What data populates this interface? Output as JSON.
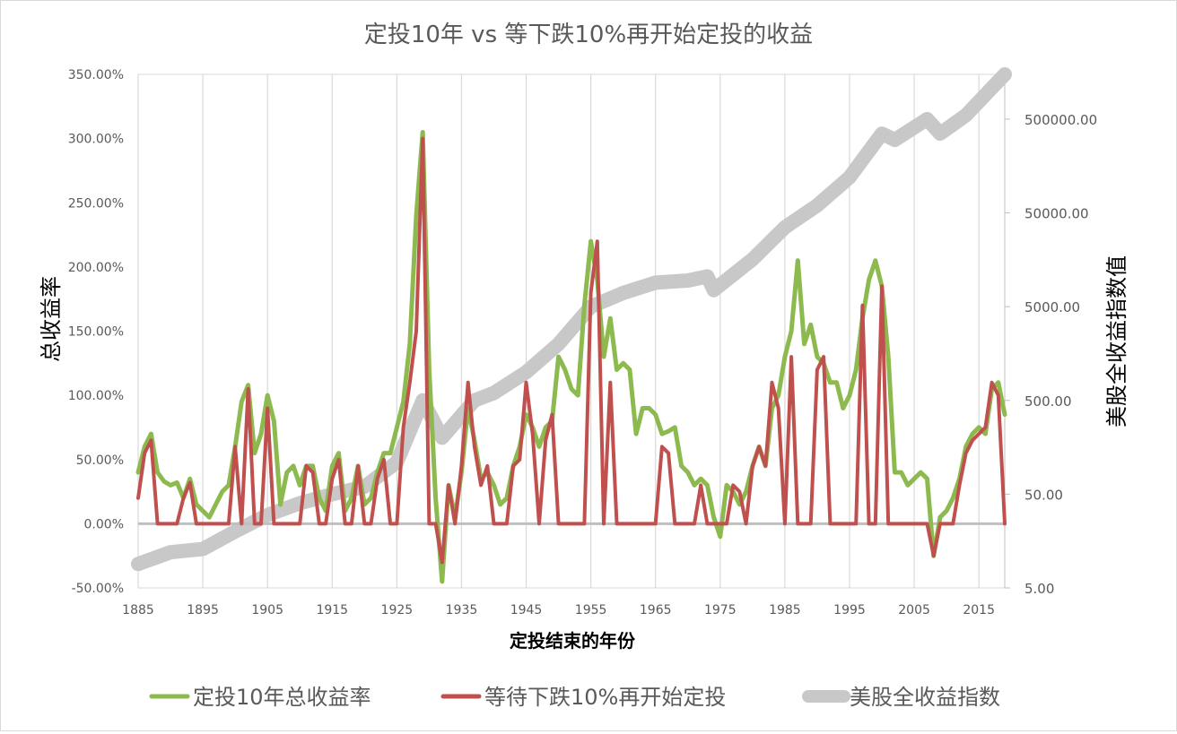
{
  "chart_data": {
    "type": "line",
    "title": "定投10年 vs 等下跌10%再开始定投的收益",
    "xlabel": "定投结束的年份",
    "ylabel_left": "总收益率",
    "ylabel_right": "美股全收益指数值",
    "x_ticks": [
      "1885",
      "1895",
      "1905",
      "1915",
      "1925",
      "1935",
      "1945",
      "1955",
      "1965",
      "1975",
      "1985",
      "1995",
      "2005",
      "2015"
    ],
    "y_left_ticks": [
      "350.00%",
      "300.00%",
      "250.00%",
      "200.00%",
      "150.00%",
      "100.00%",
      "50.00%",
      "0.00%",
      "-50.00%"
    ],
    "y_right_ticks": [
      "500000.00",
      "50000.00",
      "5000.00",
      "500.00",
      "50.00",
      "5.00"
    ],
    "x_range": [
      1885,
      2019
    ],
    "y_left_range": [
      -0.5,
      3.5
    ],
    "y_right_range": [
      5,
      1500000
    ],
    "y_right_scale": "log",
    "grid": "vertical",
    "legend_position": "bottom",
    "colors": {
      "green": "#8cba4e",
      "red": "#c0504d",
      "gray": "#c8c8c8"
    },
    "series": [
      {
        "name": "定投10年总收益率",
        "axis": "left",
        "color": "#8cba4e",
        "points": [
          [
            1885,
            0.4
          ],
          [
            1886,
            0.6
          ],
          [
            1887,
            0.7
          ],
          [
            1888,
            0.4
          ],
          [
            1889,
            0.33
          ],
          [
            1890,
            0.3
          ],
          [
            1891,
            0.32
          ],
          [
            1892,
            0.2
          ],
          [
            1893,
            0.35
          ],
          [
            1894,
            0.15
          ],
          [
            1895,
            0.1
          ],
          [
            1896,
            0.05
          ],
          [
            1897,
            0.15
          ],
          [
            1898,
            0.25
          ],
          [
            1899,
            0.3
          ],
          [
            1900,
            0.6
          ],
          [
            1901,
            0.95
          ],
          [
            1902,
            1.08
          ],
          [
            1903,
            0.55
          ],
          [
            1904,
            0.7
          ],
          [
            1905,
            1.0
          ],
          [
            1906,
            0.8
          ],
          [
            1907,
            0.15
          ],
          [
            1908,
            0.4
          ],
          [
            1909,
            0.45
          ],
          [
            1910,
            0.3
          ],
          [
            1911,
            0.45
          ],
          [
            1912,
            0.45
          ],
          [
            1913,
            0.2
          ],
          [
            1914,
            0.1
          ],
          [
            1915,
            0.45
          ],
          [
            1916,
            0.55
          ],
          [
            1917,
            0.1
          ],
          [
            1918,
            0.2
          ],
          [
            1919,
            0.45
          ],
          [
            1920,
            0.15
          ],
          [
            1921,
            0.2
          ],
          [
            1922,
            0.4
          ],
          [
            1923,
            0.55
          ],
          [
            1924,
            0.55
          ],
          [
            1925,
            0.75
          ],
          [
            1926,
            0.95
          ],
          [
            1927,
            1.4
          ],
          [
            1928,
            2.4
          ],
          [
            1929,
            3.05
          ],
          [
            1930,
            1.2
          ],
          [
            1931,
            0.2
          ],
          [
            1932,
            -0.45
          ],
          [
            1933,
            0.3
          ],
          [
            1934,
            0.05
          ],
          [
            1935,
            0.4
          ],
          [
            1936,
            0.9
          ],
          [
            1937,
            0.65
          ],
          [
            1938,
            0.35
          ],
          [
            1939,
            0.4
          ],
          [
            1940,
            0.3
          ],
          [
            1941,
            0.15
          ],
          [
            1942,
            0.2
          ],
          [
            1943,
            0.45
          ],
          [
            1944,
            0.6
          ],
          [
            1945,
            0.85
          ],
          [
            1946,
            0.75
          ],
          [
            1947,
            0.6
          ],
          [
            1948,
            0.75
          ],
          [
            1949,
            0.8
          ],
          [
            1950,
            1.3
          ],
          [
            1951,
            1.2
          ],
          [
            1952,
            1.05
          ],
          [
            1953,
            1.0
          ],
          [
            1954,
            1.7
          ],
          [
            1955,
            2.2
          ],
          [
            1956,
            1.9
          ],
          [
            1957,
            1.3
          ],
          [
            1958,
            1.6
          ],
          [
            1959,
            1.2
          ],
          [
            1960,
            1.25
          ],
          [
            1961,
            1.2
          ],
          [
            1962,
            0.7
          ],
          [
            1963,
            0.9
          ],
          [
            1964,
            0.9
          ],
          [
            1965,
            0.85
          ],
          [
            1966,
            0.7
          ],
          [
            1967,
            0.72
          ],
          [
            1968,
            0.75
          ],
          [
            1969,
            0.45
          ],
          [
            1970,
            0.4
          ],
          [
            1971,
            0.3
          ],
          [
            1972,
            0.35
          ],
          [
            1973,
            0.3
          ],
          [
            1974,
            0.05
          ],
          [
            1975,
            -0.1
          ],
          [
            1976,
            0.3
          ],
          [
            1977,
            0.25
          ],
          [
            1978,
            0.15
          ],
          [
            1979,
            0.25
          ],
          [
            1980,
            0.45
          ],
          [
            1981,
            0.6
          ],
          [
            1982,
            0.45
          ],
          [
            1983,
            0.9
          ],
          [
            1984,
            1.0
          ],
          [
            1985,
            1.3
          ],
          [
            1986,
            1.5
          ],
          [
            1987,
            2.05
          ],
          [
            1988,
            1.4
          ],
          [
            1989,
            1.55
          ],
          [
            1990,
            1.3
          ],
          [
            1991,
            1.25
          ],
          [
            1992,
            1.1
          ],
          [
            1993,
            1.1
          ],
          [
            1994,
            0.9
          ],
          [
            1995,
            1.0
          ],
          [
            1996,
            1.2
          ],
          [
            1997,
            1.6
          ],
          [
            1998,
            1.9
          ],
          [
            1999,
            2.05
          ],
          [
            2000,
            1.85
          ],
          [
            2001,
            1.3
          ],
          [
            2002,
            0.4
          ],
          [
            2003,
            0.4
          ],
          [
            2004,
            0.3
          ],
          [
            2005,
            0.35
          ],
          [
            2006,
            0.4
          ],
          [
            2007,
            0.35
          ],
          [
            2008,
            -0.25
          ],
          [
            2009,
            0.05
          ],
          [
            2010,
            0.1
          ],
          [
            2011,
            0.2
          ],
          [
            2012,
            0.35
          ],
          [
            2013,
            0.6
          ],
          [
            2014,
            0.7
          ],
          [
            2015,
            0.75
          ],
          [
            2016,
            0.7
          ],
          [
            2017,
            1.05
          ],
          [
            2018,
            1.1
          ],
          [
            2019,
            0.85
          ]
        ]
      },
      {
        "name": "等待下跌10%再开始定投",
        "axis": "left",
        "color": "#c0504d",
        "points": [
          [
            1885,
            0.2
          ],
          [
            1886,
            0.55
          ],
          [
            1887,
            0.65
          ],
          [
            1888,
            0.0
          ],
          [
            1889,
            0.0
          ],
          [
            1890,
            0.0
          ],
          [
            1891,
            0.0
          ],
          [
            1892,
            0.2
          ],
          [
            1893,
            0.32
          ],
          [
            1894,
            0.0
          ],
          [
            1895,
            0.0
          ],
          [
            1896,
            0.0
          ],
          [
            1897,
            0.0
          ],
          [
            1898,
            0.0
          ],
          [
            1899,
            0.0
          ],
          [
            1900,
            0.6
          ],
          [
            1901,
            0.0
          ],
          [
            1902,
            1.05
          ],
          [
            1903,
            0.0
          ],
          [
            1904,
            0.0
          ],
          [
            1905,
            0.9
          ],
          [
            1906,
            0.0
          ],
          [
            1907,
            0.0
          ],
          [
            1908,
            0.0
          ],
          [
            1909,
            0.0
          ],
          [
            1910,
            0.0
          ],
          [
            1911,
            0.45
          ],
          [
            1912,
            0.4
          ],
          [
            1913,
            0.0
          ],
          [
            1914,
            0.0
          ],
          [
            1915,
            0.35
          ],
          [
            1916,
            0.5
          ],
          [
            1917,
            0.0
          ],
          [
            1918,
            0.0
          ],
          [
            1919,
            0.45
          ],
          [
            1920,
            0.0
          ],
          [
            1921,
            0.0
          ],
          [
            1922,
            0.35
          ],
          [
            1923,
            0.5
          ],
          [
            1924,
            0.0
          ],
          [
            1925,
            0.0
          ],
          [
            1926,
            0.75
          ],
          [
            1927,
            1.1
          ],
          [
            1928,
            1.5
          ],
          [
            1929,
            3.0
          ],
          [
            1930,
            0.0
          ],
          [
            1931,
            0.0
          ],
          [
            1932,
            -0.3
          ],
          [
            1933,
            0.3
          ],
          [
            1934,
            0.0
          ],
          [
            1935,
            0.45
          ],
          [
            1936,
            1.1
          ],
          [
            1937,
            0.6
          ],
          [
            1938,
            0.3
          ],
          [
            1939,
            0.45
          ],
          [
            1940,
            0.0
          ],
          [
            1941,
            0.0
          ],
          [
            1942,
            0.0
          ],
          [
            1943,
            0.45
          ],
          [
            1944,
            0.5
          ],
          [
            1945,
            1.1
          ],
          [
            1946,
            0.7
          ],
          [
            1947,
            0.0
          ],
          [
            1948,
            0.65
          ],
          [
            1949,
            0.85
          ],
          [
            1950,
            0.0
          ],
          [
            1951,
            0.0
          ],
          [
            1952,
            0.0
          ],
          [
            1953,
            0.0
          ],
          [
            1954,
            0.0
          ],
          [
            1955,
            1.8
          ],
          [
            1956,
            2.2
          ],
          [
            1957,
            0.0
          ],
          [
            1958,
            1.1
          ],
          [
            1959,
            0.0
          ],
          [
            1960,
            0.0
          ],
          [
            1961,
            0.0
          ],
          [
            1962,
            0.0
          ],
          [
            1963,
            0.0
          ],
          [
            1964,
            0.0
          ],
          [
            1965,
            0.0
          ],
          [
            1966,
            0.6
          ],
          [
            1967,
            0.55
          ],
          [
            1968,
            0.0
          ],
          [
            1969,
            0.0
          ],
          [
            1970,
            0.0
          ],
          [
            1971,
            0.0
          ],
          [
            1972,
            0.3
          ],
          [
            1973,
            0.0
          ],
          [
            1974,
            0.0
          ],
          [
            1975,
            0.0
          ],
          [
            1976,
            0.0
          ],
          [
            1977,
            0.3
          ],
          [
            1978,
            0.25
          ],
          [
            1979,
            0.0
          ],
          [
            1980,
            0.45
          ],
          [
            1981,
            0.6
          ],
          [
            1982,
            0.45
          ],
          [
            1983,
            1.1
          ],
          [
            1984,
            0.9
          ],
          [
            1985,
            0.0
          ],
          [
            1986,
            1.3
          ],
          [
            1987,
            0.0
          ],
          [
            1988,
            0.0
          ],
          [
            1989,
            0.0
          ],
          [
            1990,
            1.2
          ],
          [
            1991,
            1.3
          ],
          [
            1992,
            0.0
          ],
          [
            1993,
            0.0
          ],
          [
            1994,
            0.0
          ],
          [
            1995,
            0.0
          ],
          [
            1996,
            0.0
          ],
          [
            1997,
            1.7
          ],
          [
            1998,
            0.0
          ],
          [
            1999,
            0.0
          ],
          [
            2000,
            1.85
          ],
          [
            2001,
            0.0
          ],
          [
            2002,
            0.0
          ],
          [
            2003,
            0.0
          ],
          [
            2004,
            0.0
          ],
          [
            2005,
            0.0
          ],
          [
            2006,
            0.0
          ],
          [
            2007,
            0.0
          ],
          [
            2008,
            -0.25
          ],
          [
            2009,
            0.0
          ],
          [
            2010,
            0.0
          ],
          [
            2011,
            0.0
          ],
          [
            2012,
            0.3
          ],
          [
            2013,
            0.55
          ],
          [
            2014,
            0.65
          ],
          [
            2015,
            0.7
          ],
          [
            2016,
            0.75
          ],
          [
            2017,
            1.1
          ],
          [
            2018,
            1.0
          ],
          [
            2019,
            0.0
          ]
        ]
      },
      {
        "name": "美股全收益指数",
        "axis": "right",
        "color": "#c8c8c8",
        "points": [
          [
            1885,
            9
          ],
          [
            1890,
            12
          ],
          [
            1895,
            13
          ],
          [
            1900,
            20
          ],
          [
            1905,
            30
          ],
          [
            1910,
            40
          ],
          [
            1915,
            50
          ],
          [
            1920,
            60
          ],
          [
            1925,
            110
          ],
          [
            1929,
            500
          ],
          [
            1932,
            200
          ],
          [
            1937,
            500
          ],
          [
            1940,
            600
          ],
          [
            1945,
            1000
          ],
          [
            1950,
            2000
          ],
          [
            1955,
            5000
          ],
          [
            1960,
            7000
          ],
          [
            1965,
            9000
          ],
          [
            1970,
            9500
          ],
          [
            1973,
            10500
          ],
          [
            1974,
            7500
          ],
          [
            1980,
            16000
          ],
          [
            1985,
            35000
          ],
          [
            1990,
            60000
          ],
          [
            1995,
            120000
          ],
          [
            2000,
            350000
          ],
          [
            2002,
            300000
          ],
          [
            2007,
            500000
          ],
          [
            2009,
            350000
          ],
          [
            2013,
            550000
          ],
          [
            2019,
            1500000
          ]
        ]
      }
    ]
  }
}
